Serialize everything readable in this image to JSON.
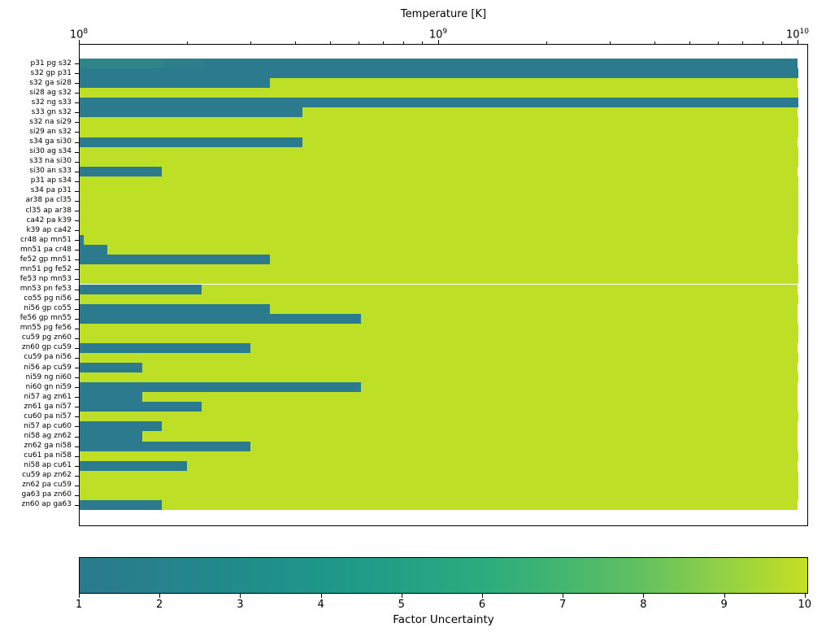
{
  "chart_data": {
    "type": "heatmap",
    "description": "Reaction rate factor uncertainty vs temperature for 46 nuclear reactions; each horizontal row is colored by factor uncertainty along a logarithmic temperature axis.",
    "x_label": "Temperature [K]",
    "x_scale": "log",
    "x_range": [
      100000000.0,
      10000000000.0
    ],
    "x_ticks": [
      {
        "label": "10^8",
        "value": 100000000.0
      },
      {
        "label": "10^9",
        "value": 1000000000.0
      },
      {
        "label": "10^10",
        "value": 10000000000.0
      }
    ],
    "colorbar": {
      "label": "Factor Uncertainty",
      "min": 1,
      "max": 10,
      "ticks": [
        1,
        2,
        3,
        4,
        5,
        6,
        7,
        8,
        9,
        10
      ],
      "gradient": [
        {
          "value": 1,
          "color": "#2b798d"
        },
        {
          "value": 2,
          "color": "#26828c"
        },
        {
          "value": 3,
          "color": "#218c8b"
        },
        {
          "value": 4,
          "color": "#1f968a"
        },
        {
          "value": 5,
          "color": "#21a186"
        },
        {
          "value": 6,
          "color": "#2cab7e"
        },
        {
          "value": 7,
          "color": "#43b671"
        },
        {
          "value": 8,
          "color": "#64c05f"
        },
        {
          "value": 9,
          "color": "#92d146"
        },
        {
          "value": 10,
          "color": "#c4de24"
        }
      ]
    },
    "colors": {
      "low_uncertainty_teal": "#2b7a8d",
      "high_uncertainty_yellow": "#bddf26"
    },
    "rows": [
      {
        "label": "p31 pg s32",
        "segments": [
          {
            "until": 170000000.0,
            "color": "#2e8489"
          },
          {
            "until": 220000000.0,
            "color": "#2c7f8b"
          },
          {
            "until": 10000000000.0,
            "color": "#2b7a8d"
          }
        ]
      },
      {
        "label": "s32 gp p31",
        "segments": [
          {
            "until": 10000000000.0,
            "color": "#2b7a8d"
          }
        ]
      },
      {
        "label": "s32 ga si28",
        "segments": [
          {
            "until": 340000000.0,
            "color": "#2b7a8d"
          },
          {
            "until": 10000000000.0,
            "color": "#bddf26"
          }
        ]
      },
      {
        "label": "si28 ag s32",
        "segments": [
          {
            "until": 10000000000.0,
            "color": "#bddf26"
          }
        ]
      },
      {
        "label": "s32 ng s33",
        "segments": [
          {
            "until": 10000000000.0,
            "color": "#2b7a8d"
          }
        ]
      },
      {
        "label": "s33 gn s32",
        "segments": [
          {
            "until": 420000000.0,
            "color": "#2b7a8d"
          },
          {
            "until": 10000000000.0,
            "color": "#bddf26"
          }
        ]
      },
      {
        "label": "s32 na si29",
        "segments": [
          {
            "until": 10000000000.0,
            "color": "#bddf26"
          }
        ]
      },
      {
        "label": "si29 an s32",
        "segments": [
          {
            "until": 10000000000.0,
            "color": "#bddf26"
          }
        ]
      },
      {
        "label": "s34 ga si30",
        "segments": [
          {
            "until": 420000000.0,
            "color": "#2b7a8d"
          },
          {
            "until": 10000000000.0,
            "color": "#bddf26"
          }
        ]
      },
      {
        "label": "si30 ag s34",
        "segments": [
          {
            "until": 10000000000.0,
            "color": "#bddf26"
          }
        ]
      },
      {
        "label": "s33 na si30",
        "segments": [
          {
            "until": 10000000000.0,
            "color": "#bddf26"
          }
        ]
      },
      {
        "label": "si30 an s33",
        "segments": [
          {
            "until": 170000000.0,
            "color": "#2b7a8d"
          },
          {
            "until": 10000000000.0,
            "color": "#bddf26"
          }
        ]
      },
      {
        "label": "p31 ap s34",
        "segments": [
          {
            "until": 10000000000.0,
            "color": "#bddf26"
          }
        ]
      },
      {
        "label": "s34 pa p31",
        "segments": [
          {
            "until": 10000000000.0,
            "color": "#bddf26"
          }
        ]
      },
      {
        "label": "ar38 pa cl35",
        "segments": [
          {
            "until": 10000000000.0,
            "color": "#bddf26"
          }
        ]
      },
      {
        "label": "cl35 ap ar38",
        "segments": [
          {
            "until": 10000000000.0,
            "color": "#bddf26"
          }
        ]
      },
      {
        "label": "ca42 pa k39",
        "segments": [
          {
            "until": 10000000000.0,
            "color": "#bddf26"
          }
        ]
      },
      {
        "label": "k39 ap ca42",
        "segments": [
          {
            "until": 10000000000.0,
            "color": "#bddf26"
          }
        ]
      },
      {
        "label": "cr48 ap mn51",
        "segments": [
          {
            "until": 103000000.0,
            "color": "#2b7a8d"
          },
          {
            "until": 10000000000.0,
            "color": "#bddf26"
          }
        ]
      },
      {
        "label": "mn51 pa cr48",
        "segments": [
          {
            "until": 120000000.0,
            "color": "#2b7a8d"
          },
          {
            "until": 10000000000.0,
            "color": "#bddf26"
          }
        ]
      },
      {
        "label": "fe52 gp mn51",
        "segments": [
          {
            "until": 340000000.0,
            "color": "#2b7a8d"
          },
          {
            "until": 10000000000.0,
            "color": "#bddf26"
          }
        ]
      },
      {
        "label": "mn51 pg fe52",
        "segments": [
          {
            "until": 10000000000.0,
            "color": "#bddf26"
          }
        ]
      },
      {
        "label": "fe53 np mn53",
        "segments": [
          {
            "until": 10000000000.0,
            "color": "#bddf26"
          }
        ]
      },
      {
        "label": "mn53 pn fe53",
        "segments": [
          {
            "until": 220000000.0,
            "color": "#2b7a8d"
          },
          {
            "until": 10000000000.0,
            "color": "#bddf26"
          }
        ]
      },
      {
        "label": "co55 pg ni56",
        "segments": [
          {
            "until": 10000000000.0,
            "color": "#bddf26"
          }
        ]
      },
      {
        "label": "ni56 gp co55",
        "segments": [
          {
            "until": 340000000.0,
            "color": "#2b7a8d"
          },
          {
            "until": 10000000000.0,
            "color": "#bddf26"
          }
        ]
      },
      {
        "label": "fe56 gp mn55",
        "segments": [
          {
            "until": 610000000.0,
            "color": "#2b7a8d"
          },
          {
            "until": 10000000000.0,
            "color": "#bddf26"
          }
        ]
      },
      {
        "label": "mn55 pg fe56",
        "segments": [
          {
            "until": 10000000000.0,
            "color": "#bddf26"
          }
        ]
      },
      {
        "label": "cu59 pg zn60",
        "segments": [
          {
            "until": 10000000000.0,
            "color": "#bddf26"
          }
        ]
      },
      {
        "label": "zn60 gp cu59",
        "segments": [
          {
            "until": 300000000.0,
            "color": "#2b7a8d"
          },
          {
            "until": 10000000000.0,
            "color": "#bddf26"
          }
        ]
      },
      {
        "label": "cu59 pa ni56",
        "segments": [
          {
            "until": 10000000000.0,
            "color": "#bddf26"
          }
        ]
      },
      {
        "label": "ni56 ap cu59",
        "segments": [
          {
            "until": 150000000.0,
            "color": "#2b7a8d"
          },
          {
            "until": 10000000000.0,
            "color": "#bddf26"
          }
        ]
      },
      {
        "label": "ni59 ng ni60",
        "segments": [
          {
            "until": 10000000000.0,
            "color": "#bddf26"
          }
        ]
      },
      {
        "label": "ni60 gn ni59",
        "segments": [
          {
            "until": 610000000.0,
            "color": "#2b7a8d"
          },
          {
            "until": 10000000000.0,
            "color": "#bddf26"
          }
        ]
      },
      {
        "label": "ni57 ag zn61",
        "segments": [
          {
            "until": 150000000.0,
            "color": "#2b7a8d"
          },
          {
            "until": 10000000000.0,
            "color": "#bddf26"
          }
        ]
      },
      {
        "label": "zn61 ga ni57",
        "segments": [
          {
            "until": 220000000.0,
            "color": "#2b7a8d"
          },
          {
            "until": 10000000000.0,
            "color": "#bddf26"
          }
        ]
      },
      {
        "label": "cu60 pa ni57",
        "segments": [
          {
            "until": 10000000000.0,
            "color": "#bddf26"
          }
        ]
      },
      {
        "label": "ni57 ap cu60",
        "segments": [
          {
            "until": 170000000.0,
            "color": "#2b7a8d"
          },
          {
            "until": 10000000000.0,
            "color": "#bddf26"
          }
        ]
      },
      {
        "label": "ni58 ag zn62",
        "segments": [
          {
            "until": 150000000.0,
            "color": "#2b7a8d"
          },
          {
            "until": 10000000000.0,
            "color": "#bddf26"
          }
        ]
      },
      {
        "label": "zn62 ga ni58",
        "segments": [
          {
            "until": 300000000.0,
            "color": "#2b7a8d"
          },
          {
            "until": 10000000000.0,
            "color": "#bddf26"
          }
        ]
      },
      {
        "label": "cu61 pa ni58",
        "segments": [
          {
            "until": 10000000000.0,
            "color": "#bddf26"
          }
        ]
      },
      {
        "label": "ni58 ap cu61",
        "segments": [
          {
            "until": 200000000.0,
            "color": "#2b7a8d"
          },
          {
            "until": 10000000000.0,
            "color": "#bddf26"
          }
        ]
      },
      {
        "label": "cu59 ap zn62",
        "segments": [
          {
            "until": 10000000000.0,
            "color": "#bddf26"
          }
        ]
      },
      {
        "label": "zn62 pa cu59",
        "segments": [
          {
            "until": 10000000000.0,
            "color": "#bddf26"
          }
        ]
      },
      {
        "label": "ga63 pa zn60",
        "segments": [
          {
            "until": 10000000000.0,
            "color": "#bddf26"
          }
        ]
      },
      {
        "label": "zn60 ap ga63",
        "segments": [
          {
            "until": 170000000.0,
            "color": "#2b7a8d"
          },
          {
            "until": 10000000000.0,
            "color": "#bddf26"
          }
        ]
      }
    ]
  }
}
